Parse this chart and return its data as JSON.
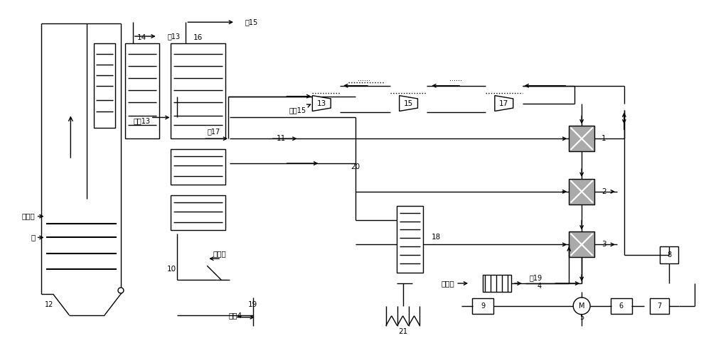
{
  "bg_color": "#ffffff",
  "lc": "#000000",
  "gray": "#aaaaaa",
  "fw": 10.0,
  "fh": 4.76,
  "dpi": 100,
  "labels": {
    "hot_air1": "热空气",
    "coal": "煤",
    "hot_air2": "热空气",
    "cold_air": "冷空气",
    "to13": "到13",
    "to15": "到15",
    "to17": "到17",
    "to19": "到19",
    "from13": "来自13",
    "from15": "来自15",
    "from4": "来自4",
    "n10": "10",
    "n11": "11",
    "n12": "12",
    "n14": "14",
    "n16": "16",
    "n18": "18",
    "n19": "19",
    "n20": "20",
    "n21": "21",
    "n1": "1",
    "n2": "2",
    "n3": "3",
    "n4": "4",
    "n5": "5",
    "n6": "6",
    "n7": "7",
    "n8": "8",
    "n9": "9",
    "n13": "13",
    "n15": "15",
    "n17": "17"
  }
}
